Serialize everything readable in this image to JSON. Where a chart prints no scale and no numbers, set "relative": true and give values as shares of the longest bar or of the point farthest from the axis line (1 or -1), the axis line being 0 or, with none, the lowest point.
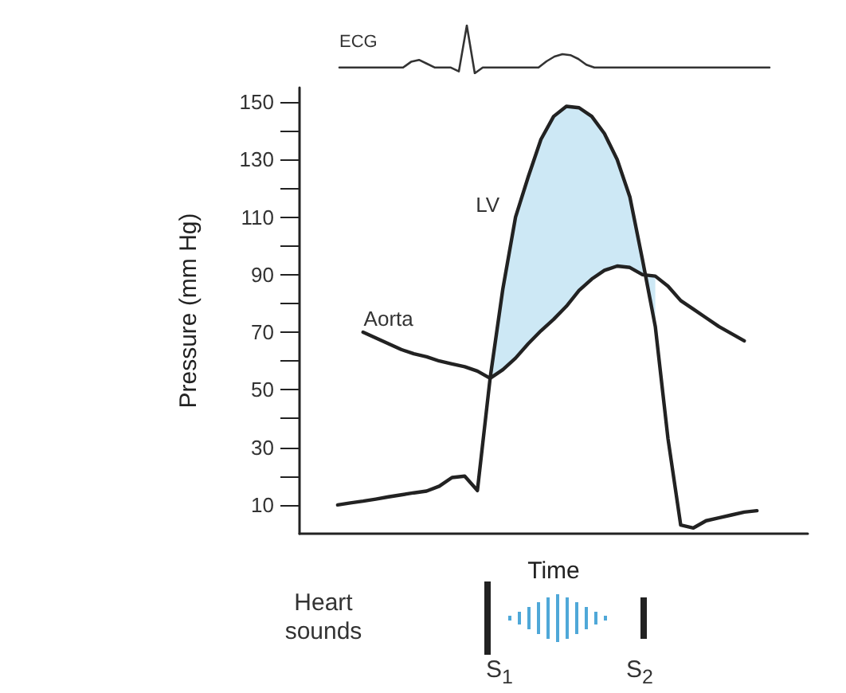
{
  "chart_data": [
    {
      "type": "line",
      "relative": true,
      "tick_labels": false,
      "grid": false,
      "legend": false,
      "marker": "none",
      "line_style": "solid",
      "categories": [
        null,
        null,
        null,
        null,
        null,
        null,
        null,
        null,
        null,
        null,
        null,
        null,
        null,
        null,
        null,
        null,
        null,
        null,
        null,
        null,
        null,
        null,
        null,
        null,
        null,
        null,
        null,
        null,
        null,
        null,
        null,
        null,
        null,
        null,
        null,
        null,
        null,
        null,
        null,
        null,
        null,
        null,
        null,
        null,
        null,
        null,
        null,
        null,
        null,
        null,
        null,
        null,
        null,
        null,
        null
      ],
      "series": [
        {
          "name": "ECG",
          "color": "#333333",
          "values": [
            0.12,
            0.12,
            0.12,
            0.12,
            0.12,
            0.12,
            0.12,
            0.12,
            0.12,
            0.24,
            0.28,
            0.2,
            0.12,
            0.12,
            0.12,
            0.04,
            1,
            0,
            0.12,
            0.12,
            0.12,
            0.12,
            0.12,
            0.12,
            0.12,
            0.12,
            0.25,
            0.35,
            0.4,
            0.38,
            0.3,
            0.18,
            0.12,
            0.12,
            0.12,
            0.12,
            0.12,
            0.12,
            0.12,
            0.12,
            0.12,
            0.12,
            0.12,
            0.12,
            0.12,
            0.12,
            0.12,
            0.12,
            0.12,
            0.12,
            0.12,
            0.12,
            0.12,
            0.12,
            0.12
          ]
        }
      ]
    },
    {
      "type": "line",
      "ylabel": "Pressure (mm Hg)",
      "xlabel": "Time",
      "categories": [
        null,
        null,
        null,
        null,
        null,
        null,
        null,
        null,
        null,
        null,
        null,
        null,
        null,
        null,
        null,
        null,
        null,
        null,
        null,
        null,
        null,
        null,
        null,
        null,
        null,
        null,
        null,
        null,
        null,
        null,
        null,
        null,
        null,
        null,
        null,
        null,
        null,
        null,
        null,
        null,
        null
      ],
      "series": [
        {
          "name": "LV",
          "color": "#222222",
          "values": [
            null,
            null,
            null,
            10,
            10.7,
            11.3,
            12,
            12.8,
            13.5,
            14.2,
            14.8,
            16.5,
            19.5,
            20,
            15,
            54,
            85,
            110,
            124,
            137,
            145,
            148.5,
            148,
            145,
            139,
            130,
            117,
            95,
            72,
            33,
            3,
            2,
            4.5,
            5.5,
            6.5,
            7.5,
            8,
            null,
            null,
            null,
            null
          ],
          "lower": [
            null,
            null,
            null,
            null,
            null,
            null,
            null,
            null,
            null,
            null,
            null,
            null,
            null,
            null,
            null,
            54,
            57,
            61,
            66,
            70.5,
            74.5,
            79,
            84.5,
            88.5,
            91.5,
            93,
            92.5,
            90,
            89.5,
            null,
            null,
            null,
            null,
            null,
            null,
            null,
            null,
            null,
            null,
            null,
            null
          ],
          "upper": [
            null,
            null,
            null,
            null,
            null,
            null,
            null,
            null,
            null,
            null,
            null,
            null,
            null,
            null,
            null,
            54,
            85,
            110,
            124,
            137,
            145,
            148.5,
            148,
            145,
            139,
            130,
            117,
            95,
            72,
            null,
            null,
            null,
            null,
            null,
            null,
            null,
            null,
            null,
            null,
            null,
            null
          ]
        },
        {
          "name": "Aorta",
          "color": "#222222",
          "values": [
            null,
            null,
            null,
            null,
            null,
            70,
            68,
            66,
            64,
            62.5,
            61.5,
            60,
            59,
            58,
            56.5,
            54,
            57,
            61,
            66,
            70.5,
            74.5,
            79,
            84.5,
            88.5,
            91.5,
            93,
            92.5,
            90,
            89.5,
            86,
            81,
            78,
            75,
            72,
            69.5,
            67,
            null,
            null,
            null,
            null,
            null
          ]
        }
      ],
      "ylim": [
        0,
        155
      ],
      "yticks": [
        10,
        {
          "value": 20,
          "label": null
        },
        30,
        {
          "value": 40,
          "label": null
        },
        50,
        {
          "value": 60,
          "label": null
        },
        70,
        {
          "value": 80,
          "label": null
        },
        90,
        {
          "value": 100,
          "label": null
        },
        110,
        {
          "value": 120,
          "label": null
        },
        130,
        {
          "value": 140,
          "label": null
        },
        150
      ],
      "tick_labels": "y",
      "grid": false,
      "legend": false,
      "marker": "none",
      "line_style": "solid",
      "annotations": [
        "Heart sounds",
        "S$_{1}$",
        "S$_{2}$"
      ]
    }
  ]
}
